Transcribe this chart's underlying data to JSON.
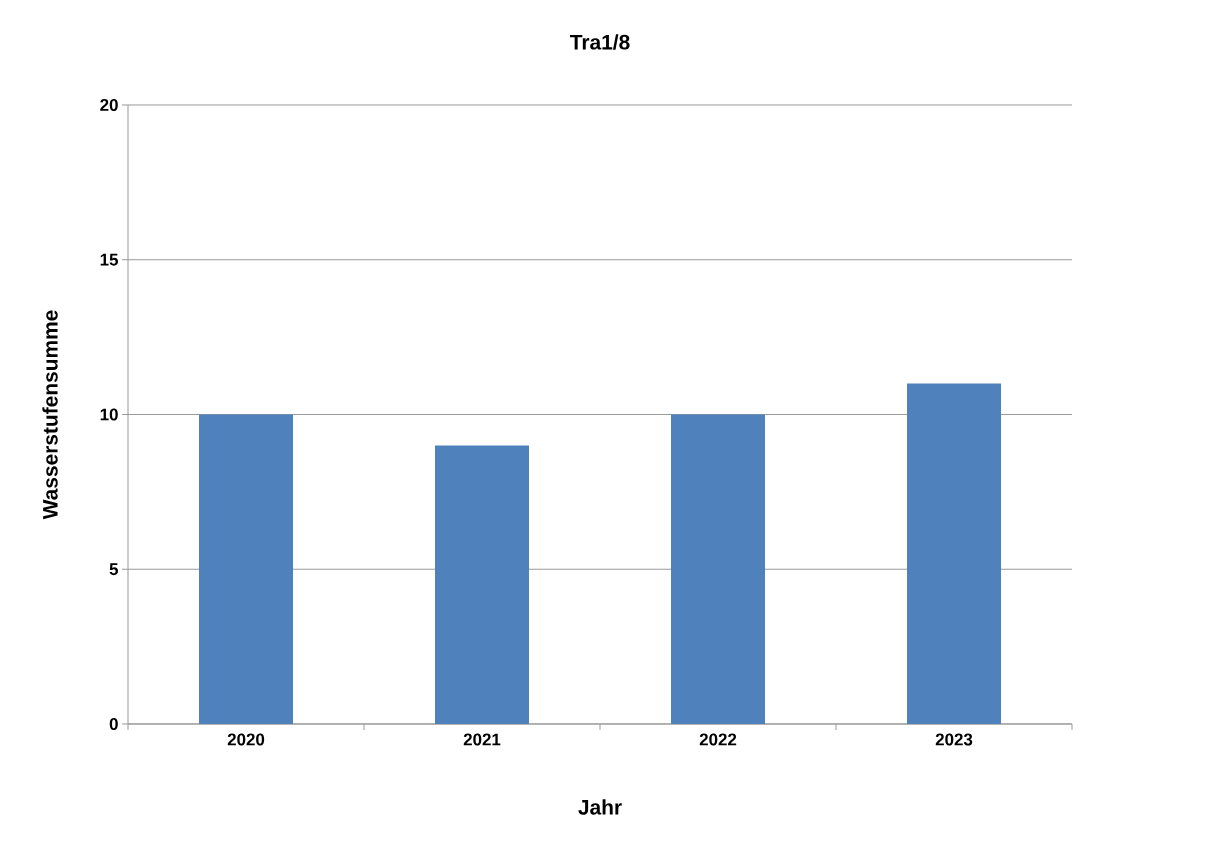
{
  "chart_data": {
    "type": "bar",
    "title": "Tra1/8",
    "xlabel": "Jahr",
    "ylabel": "Wasserstufensumme",
    "categories": [
      "2020",
      "2021",
      "2022",
      "2023"
    ],
    "values": [
      10,
      9,
      10,
      11
    ],
    "color": "#4f81bd",
    "ylim": [
      0,
      20
    ],
    "yticks": [
      0,
      5,
      10,
      15,
      20
    ],
    "grid": "y"
  }
}
